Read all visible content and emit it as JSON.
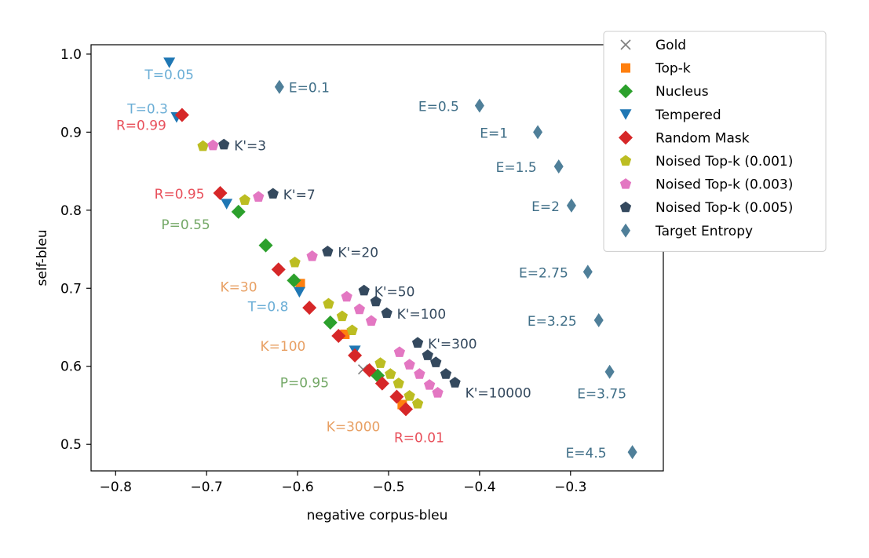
{
  "chart_data": {
    "type": "scatter",
    "title": "",
    "xlabel": "negative corpus-bleu",
    "ylabel": "self-bleu",
    "xlim": [
      -0.827,
      -0.198
    ],
    "ylim": [
      0.466,
      1.012
    ],
    "xticks": [
      -0.8,
      -0.7,
      -0.6,
      -0.5,
      -0.4,
      -0.3
    ],
    "xtick_labels": [
      "−0.8",
      "−0.7",
      "−0.6",
      "−0.5",
      "−0.4",
      "−0.3"
    ],
    "yticks": [
      0.5,
      0.6,
      0.7,
      0.8,
      0.9,
      1.0
    ],
    "ytick_labels": [
      "0.5",
      "0.6",
      "0.7",
      "0.8",
      "0.9",
      "1.0"
    ],
    "grid": false,
    "legend_position": "top-right (outside plot)",
    "series": [
      {
        "name": "Gold",
        "marker": "x",
        "color": "#7f7f7f",
        "points": [
          [
            -0.528,
            0.596
          ]
        ]
      },
      {
        "name": "Top-k",
        "marker": "square",
        "color": "#ff7f0e",
        "points": [
          [
            -0.597,
            0.706
          ],
          [
            -0.548,
            0.641
          ],
          [
            -0.485,
            0.551
          ]
        ]
      },
      {
        "name": "Nucleus",
        "marker": "diamond",
        "color": "#2ca02c",
        "points": [
          [
            -0.665,
            0.798
          ],
          [
            -0.635,
            0.755
          ],
          [
            -0.604,
            0.71
          ],
          [
            -0.564,
            0.656
          ],
          [
            -0.512,
            0.588
          ]
        ]
      },
      {
        "name": "Tempered",
        "marker": "triangle-down",
        "color": "#1f77b4",
        "points": [
          [
            -0.741,
            0.989
          ],
          [
            -0.733,
            0.919
          ],
          [
            -0.678,
            0.808
          ],
          [
            -0.598,
            0.695
          ],
          [
            -0.537,
            0.62
          ]
        ]
      },
      {
        "name": "Random Mask",
        "marker": "diamond",
        "color": "#d62728",
        "points": [
          [
            -0.727,
            0.922
          ],
          [
            -0.685,
            0.822
          ],
          [
            -0.621,
            0.724
          ],
          [
            -0.587,
            0.675
          ],
          [
            -0.555,
            0.639
          ],
          [
            -0.537,
            0.614
          ],
          [
            -0.521,
            0.595
          ],
          [
            -0.507,
            0.578
          ],
          [
            -0.491,
            0.561
          ],
          [
            -0.481,
            0.545
          ]
        ]
      },
      {
        "name": "Noised Top-k (0.001)",
        "marker": "pentagon",
        "color": "#bcbd22",
        "points": [
          [
            -0.704,
            0.882
          ],
          [
            -0.658,
            0.813
          ],
          [
            -0.603,
            0.733
          ],
          [
            -0.566,
            0.68
          ],
          [
            -0.551,
            0.664
          ],
          [
            -0.54,
            0.646
          ],
          [
            -0.509,
            0.604
          ],
          [
            -0.498,
            0.59
          ],
          [
            -0.489,
            0.578
          ],
          [
            -0.477,
            0.562
          ],
          [
            -0.468,
            0.552
          ]
        ]
      },
      {
        "name": "Noised Top-k (0.003)",
        "marker": "pentagon",
        "color": "#e377c2",
        "points": [
          [
            -0.693,
            0.883
          ],
          [
            -0.643,
            0.817
          ],
          [
            -0.584,
            0.741
          ],
          [
            -0.546,
            0.689
          ],
          [
            -0.532,
            0.673
          ],
          [
            -0.519,
            0.658
          ],
          [
            -0.488,
            0.618
          ],
          [
            -0.477,
            0.602
          ],
          [
            -0.466,
            0.59
          ],
          [
            -0.455,
            0.576
          ],
          [
            -0.446,
            0.566
          ]
        ]
      },
      {
        "name": "Noised Top-k (0.005)",
        "marker": "pentagon",
        "color": "#34495e",
        "points": [
          [
            -0.681,
            0.884
          ],
          [
            -0.627,
            0.821
          ],
          [
            -0.567,
            0.747
          ],
          [
            -0.527,
            0.697
          ],
          [
            -0.514,
            0.683
          ],
          [
            -0.502,
            0.668
          ],
          [
            -0.468,
            0.63
          ],
          [
            -0.457,
            0.614
          ],
          [
            -0.448,
            0.605
          ],
          [
            -0.437,
            0.59
          ],
          [
            -0.427,
            0.579
          ]
        ]
      },
      {
        "name": "Target Entropy",
        "marker": "thin-diamond",
        "color": "#4f7f99",
        "points": [
          [
            -0.62,
            0.958
          ],
          [
            -0.4,
            0.934
          ],
          [
            -0.336,
            0.9
          ],
          [
            -0.313,
            0.856
          ],
          [
            -0.299,
            0.806
          ],
          [
            -0.281,
            0.721
          ],
          [
            -0.269,
            0.659
          ],
          [
            -0.257,
            0.593
          ],
          [
            -0.232,
            0.49
          ]
        ]
      }
    ],
    "annotations": [
      {
        "text": "T=0.05",
        "x": -0.741,
        "y": 0.989,
        "color": "#6baed6"
      },
      {
        "text": "T=0.3",
        "x": -0.733,
        "y": 0.919,
        "color": "#6baed6"
      },
      {
        "text": "T=0.8",
        "x": -0.598,
        "y": 0.695,
        "color": "#6baed6"
      },
      {
        "text": "R=0.99",
        "x": -0.727,
        "y": 0.922,
        "color": "#e8505b"
      },
      {
        "text": "R=0.95",
        "x": -0.685,
        "y": 0.822,
        "color": "#e8505b"
      },
      {
        "text": "R=0.01",
        "x": -0.481,
        "y": 0.545,
        "color": "#e8505b"
      },
      {
        "text": "P=0.55",
        "x": -0.665,
        "y": 0.798,
        "color": "#74a867"
      },
      {
        "text": "P=0.95",
        "x": -0.512,
        "y": 0.588,
        "color": "#74a867"
      },
      {
        "text": "K=30",
        "x": -0.597,
        "y": 0.706,
        "color": "#e8a064"
      },
      {
        "text": "K=100",
        "x": -0.548,
        "y": 0.641,
        "color": "#e8a064"
      },
      {
        "text": "K=3000",
        "x": -0.485,
        "y": 0.551,
        "color": "#e8a064"
      },
      {
        "text": "K'=3",
        "x": -0.681,
        "y": 0.884,
        "color": "#34495e"
      },
      {
        "text": "K'=7",
        "x": -0.627,
        "y": 0.821,
        "color": "#34495e"
      },
      {
        "text": "K'=20",
        "x": -0.567,
        "y": 0.747,
        "color": "#34495e"
      },
      {
        "text": "K'=50",
        "x": -0.527,
        "y": 0.697,
        "color": "#34495e"
      },
      {
        "text": "K'=100",
        "x": -0.502,
        "y": 0.668,
        "color": "#34495e"
      },
      {
        "text": "K'=300",
        "x": -0.468,
        "y": 0.63,
        "color": "#34495e"
      },
      {
        "text": "K'=10000",
        "x": -0.427,
        "y": 0.579,
        "color": "#34495e"
      },
      {
        "text": "E=0.1",
        "x": -0.62,
        "y": 0.958,
        "color": "#3f6e87"
      },
      {
        "text": "E=0.5",
        "x": -0.4,
        "y": 0.934,
        "color": "#3f6e87"
      },
      {
        "text": "E=1",
        "x": -0.336,
        "y": 0.9,
        "color": "#3f6e87"
      },
      {
        "text": "E=1.5",
        "x": -0.313,
        "y": 0.856,
        "color": "#3f6e87"
      },
      {
        "text": "E=2",
        "x": -0.299,
        "y": 0.806,
        "color": "#3f6e87"
      },
      {
        "text": "E=2.75",
        "x": -0.281,
        "y": 0.721,
        "color": "#3f6e87"
      },
      {
        "text": "E=3.25",
        "x": -0.269,
        "y": 0.659,
        "color": "#3f6e87"
      },
      {
        "text": "E=3.75",
        "x": -0.257,
        "y": 0.593,
        "color": "#3f6e87"
      },
      {
        "text": "E=4.5",
        "x": -0.232,
        "y": 0.49,
        "color": "#3f6e87"
      }
    ]
  }
}
